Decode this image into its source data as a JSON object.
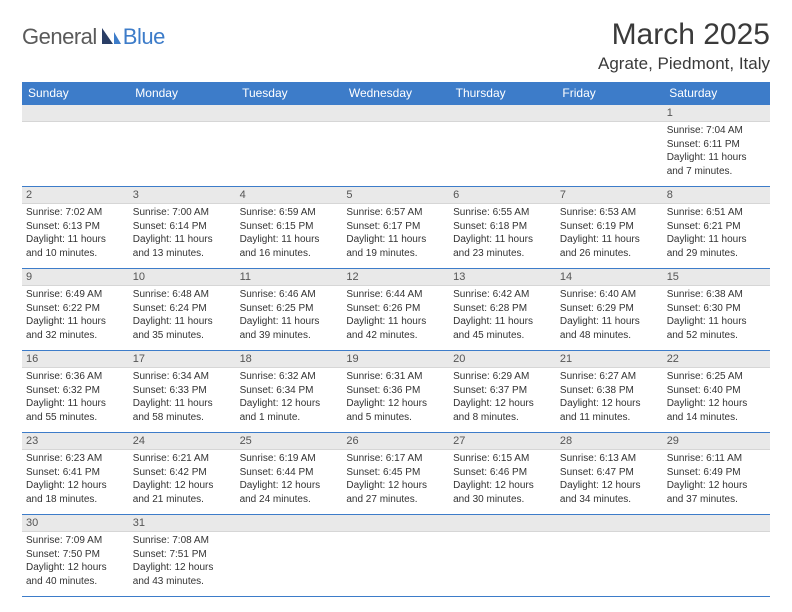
{
  "logo": {
    "part1": "General",
    "part2": "Blue"
  },
  "title": "March 2025",
  "location": "Agrate, Piedmont, Italy",
  "weekdays": [
    "Sunday",
    "Monday",
    "Tuesday",
    "Wednesday",
    "Thursday",
    "Friday",
    "Saturday"
  ],
  "colors": {
    "header_bg": "#3d7cc9",
    "header_fg": "#ffffff",
    "daynum_bg": "#e9e9e9",
    "border": "#3d7cc9",
    "logo_gray": "#5a5a5a",
    "logo_blue": "#3d7cc9"
  },
  "weeks": [
    [
      {
        "blank": true
      },
      {
        "blank": true
      },
      {
        "blank": true
      },
      {
        "blank": true
      },
      {
        "blank": true
      },
      {
        "blank": true
      },
      {
        "n": "1",
        "sunrise": "7:04 AM",
        "sunset": "6:11 PM",
        "daylight": "11 hours and 7 minutes."
      }
    ],
    [
      {
        "n": "2",
        "sunrise": "7:02 AM",
        "sunset": "6:13 PM",
        "daylight": "11 hours and 10 minutes."
      },
      {
        "n": "3",
        "sunrise": "7:00 AM",
        "sunset": "6:14 PM",
        "daylight": "11 hours and 13 minutes."
      },
      {
        "n": "4",
        "sunrise": "6:59 AM",
        "sunset": "6:15 PM",
        "daylight": "11 hours and 16 minutes."
      },
      {
        "n": "5",
        "sunrise": "6:57 AM",
        "sunset": "6:17 PM",
        "daylight": "11 hours and 19 minutes."
      },
      {
        "n": "6",
        "sunrise": "6:55 AM",
        "sunset": "6:18 PM",
        "daylight": "11 hours and 23 minutes."
      },
      {
        "n": "7",
        "sunrise": "6:53 AM",
        "sunset": "6:19 PM",
        "daylight": "11 hours and 26 minutes."
      },
      {
        "n": "8",
        "sunrise": "6:51 AM",
        "sunset": "6:21 PM",
        "daylight": "11 hours and 29 minutes."
      }
    ],
    [
      {
        "n": "9",
        "sunrise": "6:49 AM",
        "sunset": "6:22 PM",
        "daylight": "11 hours and 32 minutes."
      },
      {
        "n": "10",
        "sunrise": "6:48 AM",
        "sunset": "6:24 PM",
        "daylight": "11 hours and 35 minutes."
      },
      {
        "n": "11",
        "sunrise": "6:46 AM",
        "sunset": "6:25 PM",
        "daylight": "11 hours and 39 minutes."
      },
      {
        "n": "12",
        "sunrise": "6:44 AM",
        "sunset": "6:26 PM",
        "daylight": "11 hours and 42 minutes."
      },
      {
        "n": "13",
        "sunrise": "6:42 AM",
        "sunset": "6:28 PM",
        "daylight": "11 hours and 45 minutes."
      },
      {
        "n": "14",
        "sunrise": "6:40 AM",
        "sunset": "6:29 PM",
        "daylight": "11 hours and 48 minutes."
      },
      {
        "n": "15",
        "sunrise": "6:38 AM",
        "sunset": "6:30 PM",
        "daylight": "11 hours and 52 minutes."
      }
    ],
    [
      {
        "n": "16",
        "sunrise": "6:36 AM",
        "sunset": "6:32 PM",
        "daylight": "11 hours and 55 minutes."
      },
      {
        "n": "17",
        "sunrise": "6:34 AM",
        "sunset": "6:33 PM",
        "daylight": "11 hours and 58 minutes."
      },
      {
        "n": "18",
        "sunrise": "6:32 AM",
        "sunset": "6:34 PM",
        "daylight": "12 hours and 1 minute."
      },
      {
        "n": "19",
        "sunrise": "6:31 AM",
        "sunset": "6:36 PM",
        "daylight": "12 hours and 5 minutes."
      },
      {
        "n": "20",
        "sunrise": "6:29 AM",
        "sunset": "6:37 PM",
        "daylight": "12 hours and 8 minutes."
      },
      {
        "n": "21",
        "sunrise": "6:27 AM",
        "sunset": "6:38 PM",
        "daylight": "12 hours and 11 minutes."
      },
      {
        "n": "22",
        "sunrise": "6:25 AM",
        "sunset": "6:40 PM",
        "daylight": "12 hours and 14 minutes."
      }
    ],
    [
      {
        "n": "23",
        "sunrise": "6:23 AM",
        "sunset": "6:41 PM",
        "daylight": "12 hours and 18 minutes."
      },
      {
        "n": "24",
        "sunrise": "6:21 AM",
        "sunset": "6:42 PM",
        "daylight": "12 hours and 21 minutes."
      },
      {
        "n": "25",
        "sunrise": "6:19 AM",
        "sunset": "6:44 PM",
        "daylight": "12 hours and 24 minutes."
      },
      {
        "n": "26",
        "sunrise": "6:17 AM",
        "sunset": "6:45 PM",
        "daylight": "12 hours and 27 minutes."
      },
      {
        "n": "27",
        "sunrise": "6:15 AM",
        "sunset": "6:46 PM",
        "daylight": "12 hours and 30 minutes."
      },
      {
        "n": "28",
        "sunrise": "6:13 AM",
        "sunset": "6:47 PM",
        "daylight": "12 hours and 34 minutes."
      },
      {
        "n": "29",
        "sunrise": "6:11 AM",
        "sunset": "6:49 PM",
        "daylight": "12 hours and 37 minutes."
      }
    ],
    [
      {
        "n": "30",
        "sunrise": "7:09 AM",
        "sunset": "7:50 PM",
        "daylight": "12 hours and 40 minutes."
      },
      {
        "n": "31",
        "sunrise": "7:08 AM",
        "sunset": "7:51 PM",
        "daylight": "12 hours and 43 minutes."
      },
      {
        "blank": true
      },
      {
        "blank": true
      },
      {
        "blank": true
      },
      {
        "blank": true
      },
      {
        "blank": true
      }
    ]
  ],
  "labels": {
    "sunrise": "Sunrise:",
    "sunset": "Sunset:",
    "daylight": "Daylight:"
  }
}
